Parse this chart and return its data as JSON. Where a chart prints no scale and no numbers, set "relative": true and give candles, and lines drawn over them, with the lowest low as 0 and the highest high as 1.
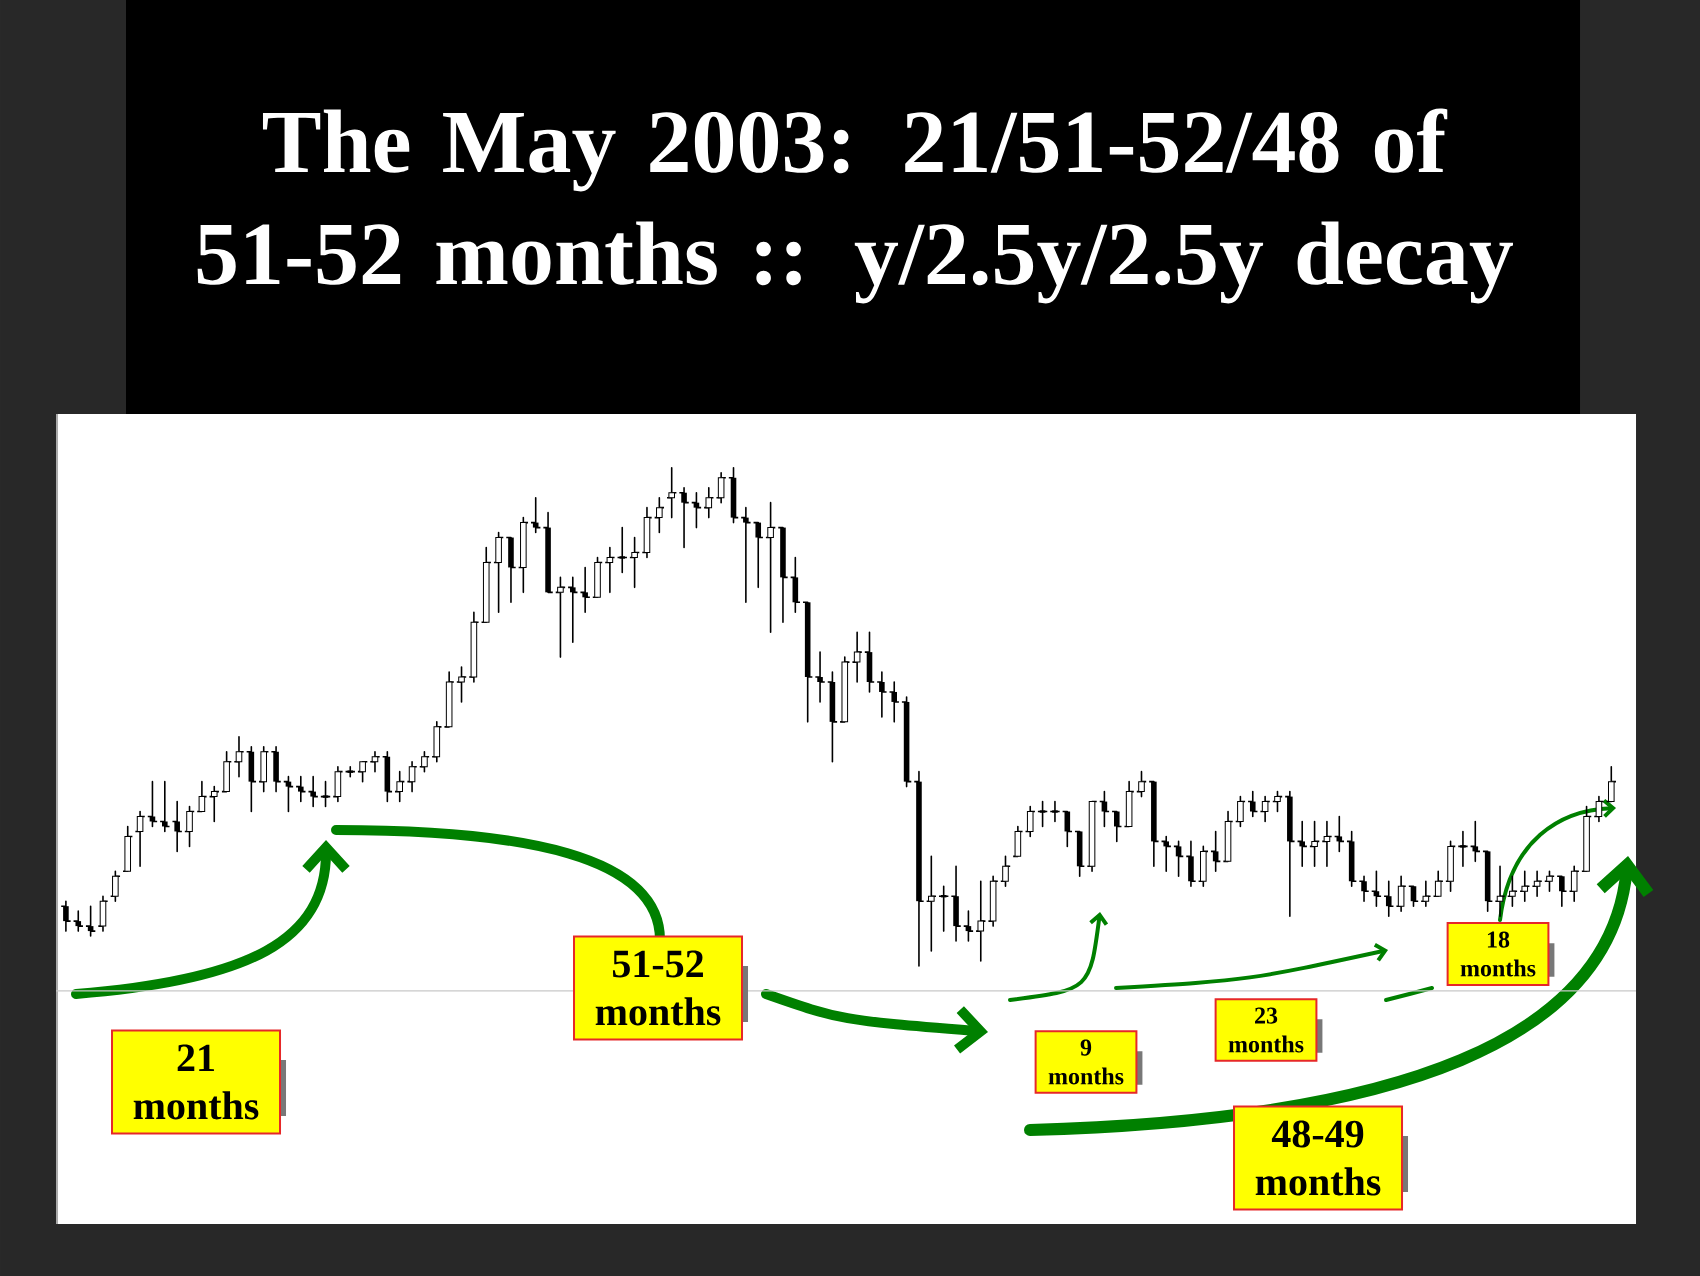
{
  "chart_data": {
    "type": "candlestick",
    "title": "The May 2003: 21/51-52/48 of 51-52 months :: y/2.5y/2.5y decay",
    "relative": true,
    "categories": [
      null,
      null,
      null,
      null,
      null,
      null,
      null,
      null,
      null,
      null,
      null,
      null,
      null,
      null,
      null,
      null,
      null,
      null,
      null,
      null,
      null,
      null,
      null,
      null,
      null,
      null,
      null,
      null,
      null,
      null,
      null,
      null,
      null,
      null,
      null,
      null,
      null,
      null,
      null,
      null,
      null,
      null,
      null,
      null,
      null,
      null,
      null,
      null,
      null,
      null,
      null,
      null,
      null,
      null,
      null,
      null,
      null,
      null,
      null,
      null,
      null,
      null,
      null,
      null,
      null,
      null,
      null,
      null,
      null,
      null,
      null,
      null,
      null,
      null,
      null,
      null,
      null,
      null,
      null,
      null,
      null,
      null,
      null,
      null,
      null,
      null,
      null,
      null,
      null,
      null,
      null,
      null,
      null,
      null,
      null,
      null,
      null,
      null,
      null,
      null,
      null,
      null,
      null,
      null,
      null,
      null,
      null,
      null,
      null,
      null,
      null,
      null,
      null,
      null,
      null,
      null,
      null,
      null,
      null,
      null,
      null,
      null,
      null,
      null,
      null,
      null
    ],
    "ohlc": [
      [
        0.12,
        0.13,
        0.07,
        0.09
      ],
      [
        0.09,
        0.11,
        0.07,
        0.08
      ],
      [
        0.08,
        0.12,
        0.06,
        0.07
      ],
      [
        0.08,
        0.14,
        0.07,
        0.13
      ],
      [
        0.14,
        0.19,
        0.13,
        0.18
      ],
      [
        0.19,
        0.28,
        0.19,
        0.26
      ],
      [
        0.27,
        0.31,
        0.2,
        0.3
      ],
      [
        0.3,
        0.37,
        0.28,
        0.29
      ],
      [
        0.29,
        0.37,
        0.27,
        0.28
      ],
      [
        0.29,
        0.33,
        0.23,
        0.27
      ],
      [
        0.27,
        0.32,
        0.24,
        0.31
      ],
      [
        0.31,
        0.37,
        0.31,
        0.34
      ],
      [
        0.34,
        0.36,
        0.29,
        0.35
      ],
      [
        0.35,
        0.43,
        0.35,
        0.41
      ],
      [
        0.41,
        0.46,
        0.38,
        0.43
      ],
      [
        0.43,
        0.44,
        0.31,
        0.37
      ],
      [
        0.37,
        0.44,
        0.35,
        0.43
      ],
      [
        0.43,
        0.44,
        0.35,
        0.37
      ],
      [
        0.37,
        0.38,
        0.31,
        0.36
      ],
      [
        0.36,
        0.38,
        0.33,
        0.35
      ],
      [
        0.35,
        0.38,
        0.32,
        0.34
      ],
      [
        0.34,
        0.37,
        0.32,
        0.34
      ],
      [
        0.34,
        0.4,
        0.33,
        0.39
      ],
      [
        0.39,
        0.4,
        0.38,
        0.39
      ],
      [
        0.39,
        0.41,
        0.37,
        0.41
      ],
      [
        0.41,
        0.43,
        0.39,
        0.42
      ],
      [
        0.42,
        0.43,
        0.33,
        0.35
      ],
      [
        0.35,
        0.39,
        0.33,
        0.37
      ],
      [
        0.37,
        0.41,
        0.35,
        0.4
      ],
      [
        0.4,
        0.43,
        0.39,
        0.42
      ],
      [
        0.42,
        0.49,
        0.41,
        0.48
      ],
      [
        0.48,
        0.59,
        0.48,
        0.57
      ],
      [
        0.57,
        0.6,
        0.53,
        0.58
      ],
      [
        0.58,
        0.71,
        0.57,
        0.69
      ],
      [
        0.69,
        0.84,
        0.69,
        0.81
      ],
      [
        0.81,
        0.87,
        0.71,
        0.86
      ],
      [
        0.86,
        0.86,
        0.73,
        0.8
      ],
      [
        0.8,
        0.9,
        0.75,
        0.89
      ],
      [
        0.89,
        0.94,
        0.87,
        0.88
      ],
      [
        0.88,
        0.91,
        0.75,
        0.75
      ],
      [
        0.75,
        0.78,
        0.62,
        0.76
      ],
      [
        0.76,
        0.78,
        0.65,
        0.75
      ],
      [
        0.75,
        0.8,
        0.71,
        0.74
      ],
      [
        0.74,
        0.82,
        0.74,
        0.81
      ],
      [
        0.81,
        0.84,
        0.75,
        0.82
      ],
      [
        0.82,
        0.88,
        0.79,
        0.82
      ],
      [
        0.82,
        0.86,
        0.76,
        0.83
      ],
      [
        0.83,
        0.92,
        0.82,
        0.9
      ],
      [
        0.9,
        0.94,
        0.87,
        0.92
      ],
      [
        0.94,
        1.0,
        0.9,
        0.95
      ],
      [
        0.95,
        0.96,
        0.84,
        0.93
      ],
      [
        0.93,
        0.95,
        0.88,
        0.92
      ],
      [
        0.92,
        0.96,
        0.9,
        0.94
      ],
      [
        0.94,
        0.99,
        0.93,
        0.98
      ],
      [
        0.98,
        1.0,
        0.89,
        0.9
      ],
      [
        0.9,
        0.92,
        0.73,
        0.89
      ],
      [
        0.89,
        0.89,
        0.76,
        0.86
      ],
      [
        0.86,
        0.93,
        0.67,
        0.88
      ],
      [
        0.88,
        0.88,
        0.69,
        0.78
      ],
      [
        0.78,
        0.82,
        0.71,
        0.73
      ],
      [
        0.73,
        0.73,
        0.49,
        0.58
      ],
      [
        0.58,
        0.63,
        0.53,
        0.57
      ],
      [
        0.57,
        0.59,
        0.41,
        0.49
      ],
      [
        0.49,
        0.62,
        0.49,
        0.61
      ],
      [
        0.61,
        0.67,
        0.57,
        0.63
      ],
      [
        0.63,
        0.67,
        0.55,
        0.57
      ],
      [
        0.57,
        0.59,
        0.5,
        0.55
      ],
      [
        0.55,
        0.57,
        0.49,
        0.53
      ],
      [
        0.53,
        0.54,
        0.36,
        0.37
      ],
      [
        0.37,
        0.39,
        0.0,
        0.13
      ],
      [
        0.13,
        0.22,
        0.03,
        0.14
      ],
      [
        0.14,
        0.16,
        0.07,
        0.14
      ],
      [
        0.14,
        0.2,
        0.05,
        0.08
      ],
      [
        0.08,
        0.11,
        0.05,
        0.07
      ],
      [
        0.07,
        0.17,
        0.01,
        0.09
      ],
      [
        0.09,
        0.18,
        0.08,
        0.17
      ],
      [
        0.17,
        0.22,
        0.16,
        0.2
      ],
      [
        0.22,
        0.28,
        0.22,
        0.27
      ],
      [
        0.27,
        0.32,
        0.26,
        0.31
      ],
      [
        0.31,
        0.33,
        0.28,
        0.31
      ],
      [
        0.31,
        0.33,
        0.29,
        0.31
      ],
      [
        0.31,
        0.31,
        0.24,
        0.27
      ],
      [
        0.27,
        0.27,
        0.18,
        0.2
      ],
      [
        0.2,
        0.33,
        0.19,
        0.33
      ],
      [
        0.33,
        0.35,
        0.28,
        0.31
      ],
      [
        0.31,
        0.31,
        0.25,
        0.28
      ],
      [
        0.28,
        0.37,
        0.28,
        0.35
      ],
      [
        0.35,
        0.39,
        0.34,
        0.37
      ],
      [
        0.37,
        0.37,
        0.2,
        0.25
      ],
      [
        0.25,
        0.26,
        0.19,
        0.24
      ],
      [
        0.24,
        0.25,
        0.18,
        0.22
      ],
      [
        0.22,
        0.25,
        0.16,
        0.17
      ],
      [
        0.17,
        0.24,
        0.16,
        0.23
      ],
      [
        0.23,
        0.27,
        0.19,
        0.21
      ],
      [
        0.21,
        0.31,
        0.21,
        0.29
      ],
      [
        0.29,
        0.34,
        0.28,
        0.33
      ],
      [
        0.33,
        0.35,
        0.3,
        0.31
      ],
      [
        0.31,
        0.34,
        0.29,
        0.33
      ],
      [
        0.33,
        0.35,
        0.31,
        0.34
      ],
      [
        0.34,
        0.35,
        0.1,
        0.25
      ],
      [
        0.25,
        0.29,
        0.2,
        0.24
      ],
      [
        0.24,
        0.29,
        0.2,
        0.25
      ],
      [
        0.25,
        0.29,
        0.2,
        0.26
      ],
      [
        0.26,
        0.3,
        0.23,
        0.25
      ],
      [
        0.25,
        0.27,
        0.16,
        0.17
      ],
      [
        0.17,
        0.18,
        0.13,
        0.15
      ],
      [
        0.15,
        0.19,
        0.12,
        0.14
      ],
      [
        0.14,
        0.17,
        0.1,
        0.12
      ],
      [
        0.12,
        0.18,
        0.11,
        0.16
      ],
      [
        0.16,
        0.16,
        0.12,
        0.13
      ],
      [
        0.13,
        0.17,
        0.12,
        0.14
      ],
      [
        0.14,
        0.19,
        0.14,
        0.17
      ],
      [
        0.17,
        0.25,
        0.15,
        0.24
      ],
      [
        0.24,
        0.27,
        0.2,
        0.24
      ],
      [
        0.24,
        0.29,
        0.21,
        0.23
      ],
      [
        0.23,
        0.23,
        0.11,
        0.13
      ],
      [
        0.13,
        0.2,
        0.1,
        0.14
      ],
      [
        0.14,
        0.18,
        0.12,
        0.15
      ],
      [
        0.15,
        0.19,
        0.13,
        0.16
      ],
      [
        0.16,
        0.19,
        0.14,
        0.17
      ],
      [
        0.17,
        0.19,
        0.15,
        0.18
      ],
      [
        0.18,
        0.18,
        0.12,
        0.15
      ],
      [
        0.15,
        0.2,
        0.13,
        0.19
      ],
      [
        0.19,
        0.32,
        0.19,
        0.3
      ],
      [
        0.3,
        0.34,
        0.29,
        0.33
      ],
      [
        0.33,
        0.4,
        0.33,
        0.37
      ]
    ],
    "ref_lines": [
      {
        "axis": "y",
        "value": -0.05,
        "color": "#c8c8c8"
      }
    ],
    "annotations": [
      "21 months",
      "51-52 months",
      "9 months",
      "23 months",
      "18 months",
      "48-49 months"
    ]
  }
}
